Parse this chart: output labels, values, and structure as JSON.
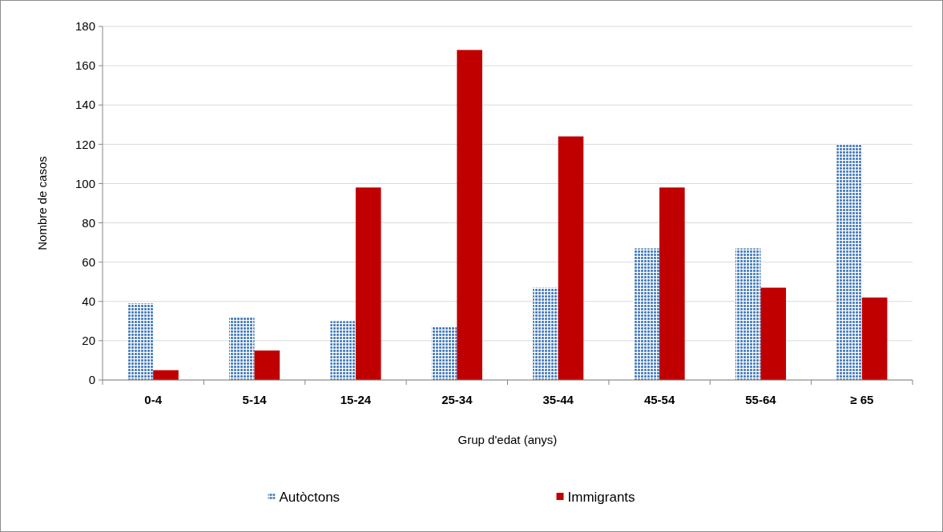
{
  "chart_data": {
    "type": "bar",
    "xlabel": "Grup d'edat (anys)",
    "ylabel": "Nombre de casos",
    "categories": [
      "0-4",
      "5-14",
      "15-24",
      "25-34",
      "35-44",
      "45-54",
      "55-64",
      "≥ 65"
    ],
    "series": [
      {
        "name": "Autòctons",
        "color": "#4a7ebb",
        "values": [
          39,
          32,
          30,
          27,
          47,
          67,
          67,
          120
        ]
      },
      {
        "name": "Immigrants",
        "color": "#c00000",
        "values": [
          5,
          15,
          98,
          168,
          124,
          98,
          47,
          42
        ]
      }
    ],
    "ylim": [
      0,
      180
    ],
    "yticks": [
      0,
      20,
      40,
      60,
      80,
      100,
      120,
      140,
      160,
      180
    ],
    "grid": "y",
    "legend": "bottom"
  }
}
